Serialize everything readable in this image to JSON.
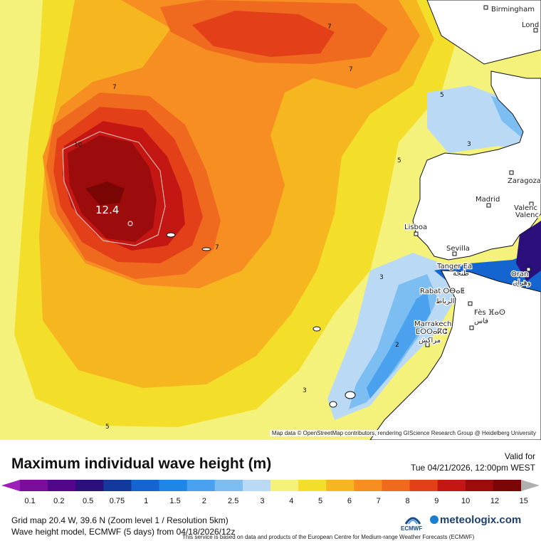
{
  "map": {
    "max_label": "12.4",
    "contour_labels": [
      "7",
      "7",
      "7",
      "10",
      "7",
      "5",
      "5",
      "3",
      "3",
      "2",
      "3",
      "5"
    ],
    "cities": [
      "Birmingham",
      "Lond",
      "Zaragoza",
      "Madrid",
      "Valenc",
      "Valenc",
      "Lisboa",
      "Sevilla",
      "Tanger Ea",
      "طنجة",
      "Oran",
      "وهران",
      "Rabat ⵔⴱⴰⵟ",
      "الرباط",
      "Fès ⴼⴰⵙ",
      "فاس",
      "Marrakech",
      "ⵎⵔⵔⴰⴽⵛ",
      "مراكش"
    ],
    "attribution": "Map data © OpenStreetMap contributors, rendering GIScience Research Group @ Heidelberg University"
  },
  "legend": {
    "title": "Maximum individual wave height (m)",
    "valid_label": "Valid for",
    "valid_time": "Tue 04/21/2026, 12:00pm WEST",
    "ticks": [
      "0.1",
      "0.2",
      "0.5",
      "0.75",
      "1",
      "1.5",
      "2",
      "2.5",
      "3",
      "4",
      "5",
      "6",
      "7",
      "8",
      "9",
      "10",
      "12",
      "15"
    ],
    "colors": [
      "#9c1fb8",
      "#7a0e9a",
      "#53068a",
      "#2b0f7a",
      "#123a9c",
      "#1565d0",
      "#1f86e8",
      "#4aa2ee",
      "#7cbdf2",
      "#b9d9f4",
      "#f4f27a",
      "#f3de2a",
      "#f6b61f",
      "#f68e22",
      "#ef6a1e",
      "#e3401a",
      "#c41714",
      "#9c0c0c",
      "#7a0505",
      "#5e0000"
    ],
    "info_line1": "Grid map 20.4 W, 39.6 N (Zoom level 1 / Resolution 5km)",
    "info_line2": "Wave height model, ECMWF (5 days) from 04/18/2026/12z",
    "disclaimer": "This service is based on data and products of the European Centre for Medium-range Weather Forecasts (ECMWF)",
    "ecmwf_label": "ECMWF",
    "brand": "meteologix.com"
  }
}
